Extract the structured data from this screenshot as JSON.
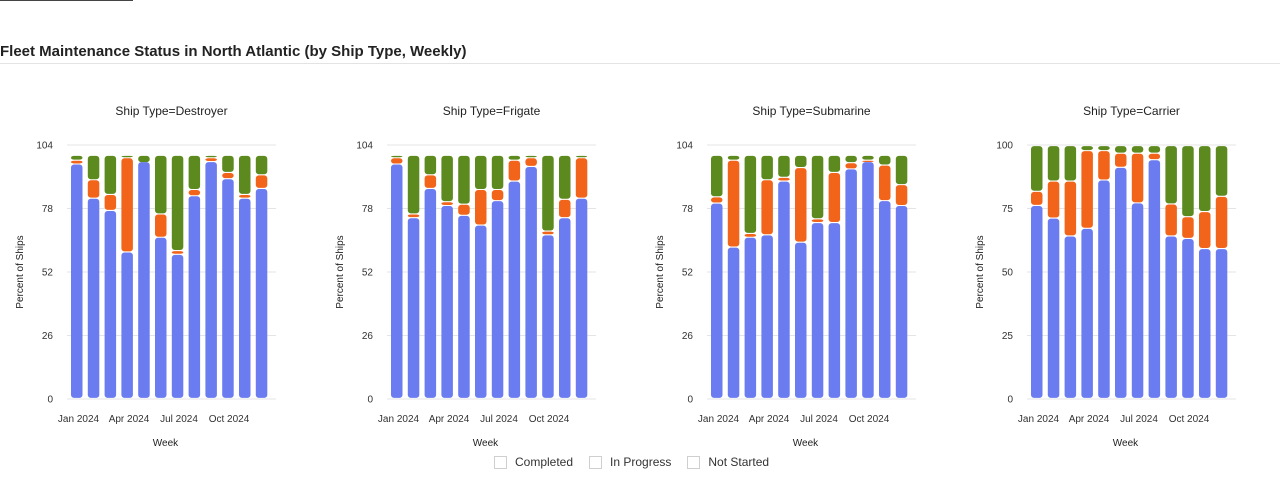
{
  "page": {
    "title": "Fleet Maintenance Status in North Atlantic (by Ship Type, Weekly)"
  },
  "legend": [
    {
      "label": "Completed",
      "color": "#6b7cf0"
    },
    {
      "label": "In Progress",
      "color": "#f26419"
    },
    {
      "label": "Not Started",
      "color": "#5c8a1e"
    }
  ],
  "chart_data": [
    {
      "type": "bar",
      "stacked": true,
      "title": "Ship Type=Destroyer",
      "xlabel": "Week",
      "ylabel": "Percent of Ships",
      "ylim": [
        0,
        104
      ],
      "yticks": [
        0,
        26,
        52,
        78,
        104
      ],
      "xticks": [
        "Jan 2024",
        "Apr 2024",
        "Jul 2024",
        "Oct 2024"
      ],
      "series": [
        {
          "name": "Completed",
          "values": [
            96,
            82,
            77,
            60,
            97,
            66,
            59,
            83,
            97,
            90,
            82,
            86
          ]
        },
        {
          "name": "In Progress",
          "values": [
            2,
            8,
            7,
            39,
            0,
            10,
            2,
            3,
            2,
            3,
            2,
            6
          ]
        },
        {
          "name": "Not Started",
          "values": [
            2,
            10,
            16,
            1,
            3,
            24,
            39,
            14,
            1,
            7,
            16,
            8
          ]
        }
      ]
    },
    {
      "type": "bar",
      "stacked": true,
      "title": "Ship Type=Frigate",
      "xlabel": "Week",
      "ylabel": "Percent of Ships",
      "ylim": [
        0,
        104
      ],
      "yticks": [
        0,
        26,
        52,
        78,
        104
      ],
      "xticks": [
        "Jan 2024",
        "Apr 2024",
        "Jul 2024",
        "Oct 2024"
      ],
      "series": [
        {
          "name": "Completed",
          "values": [
            96,
            74,
            86,
            79,
            75,
            71,
            81,
            89,
            95,
            67,
            74,
            82
          ]
        },
        {
          "name": "In Progress",
          "values": [
            3,
            2,
            6,
            2,
            5,
            15,
            5,
            9,
            4,
            2,
            8,
            17
          ]
        },
        {
          "name": "Not Started",
          "values": [
            1,
            24,
            8,
            19,
            20,
            14,
            14,
            2,
            1,
            31,
            18,
            1
          ]
        }
      ]
    },
    {
      "type": "bar",
      "stacked": true,
      "title": "Ship Type=Submarine",
      "xlabel": "Week",
      "ylabel": "Percent of Ships",
      "ylim": [
        0,
        104
      ],
      "yticks": [
        0,
        26,
        52,
        78,
        104
      ],
      "xticks": [
        "Jan 2024",
        "Apr 2024",
        "Jul 2024",
        "Oct 2024"
      ],
      "series": [
        {
          "name": "Completed",
          "values": [
            80,
            62,
            66,
            67,
            89,
            64,
            72,
            72,
            94,
            97,
            81,
            79
          ]
        },
        {
          "name": "In Progress",
          "values": [
            3,
            36,
            2,
            23,
            2,
            31,
            2,
            21,
            3,
            1,
            15,
            9
          ]
        },
        {
          "name": "Not Started",
          "values": [
            17,
            2,
            32,
            10,
            9,
            5,
            26,
            7,
            3,
            2,
            4,
            12
          ]
        }
      ]
    },
    {
      "type": "bar",
      "stacked": true,
      "title": "Ship Type=Carrier",
      "xlabel": "Week",
      "ylabel": "Percent of Ships",
      "ylim": [
        0,
        100
      ],
      "yticks": [
        0,
        25,
        50,
        75,
        100
      ],
      "xticks": [
        "Jan 2024",
        "Apr 2024",
        "Jul 2024",
        "Oct 2024"
      ],
      "series": [
        {
          "name": "Completed",
          "values": [
            76,
            71,
            64,
            67,
            86,
            91,
            77,
            94,
            64,
            63,
            59,
            59
          ]
        },
        {
          "name": "In Progress",
          "values": [
            6,
            15,
            22,
            31,
            12,
            6,
            20,
            3,
            13,
            9,
            15,
            21
          ]
        },
        {
          "name": "Not Started",
          "values": [
            18,
            14,
            14,
            2,
            2,
            3,
            3,
            3,
            23,
            28,
            26,
            20
          ]
        }
      ]
    }
  ]
}
